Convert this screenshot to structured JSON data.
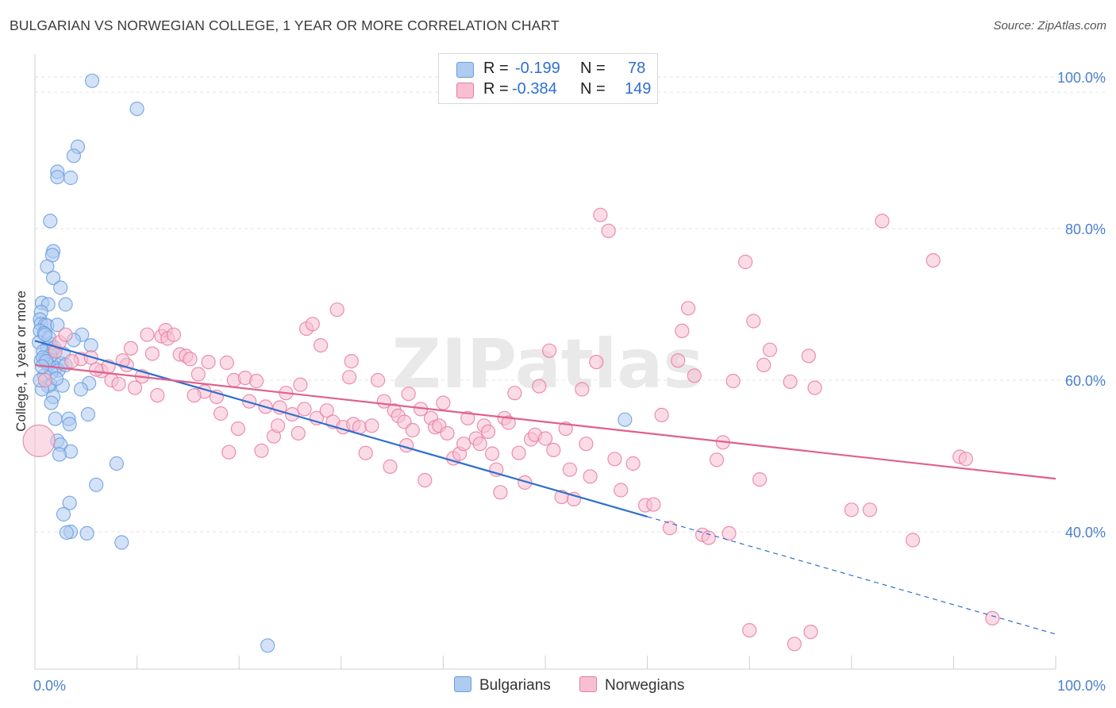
{
  "title": "BULGARIAN VS NORWEGIAN COLLEGE, 1 YEAR OR MORE CORRELATION CHART",
  "source": "Source: ZipAtlas.com",
  "watermark": "ZIPatlas",
  "colors": {
    "bulgarians": "#6a9ee0",
    "bulgarians_fill": "#aecbf0",
    "norwegians": "#e87ca0",
    "norwegians_fill": "#f7bfd1",
    "accent_text": "#2f6fd0",
    "grid": "#e2e2e2"
  },
  "legend": {
    "row1": {
      "r_label": "R =",
      "r_value": "-0.199",
      "n_label": "N =",
      "n_value": "78"
    },
    "row2": {
      "r_label": "R =",
      "r_value": "-0.384",
      "n_label": "N =",
      "n_value": "149"
    }
  },
  "bottom_legend": {
    "bulgarians": "Bulgarians",
    "norwegians": "Norwegians"
  },
  "chart_data": {
    "type": "scatter",
    "title": "BULGARIAN VS NORWEGIAN COLLEGE, 1 YEAR OR MORE CORRELATION CHART",
    "xlabel": "",
    "ylabel": "College, 1 year or more",
    "xlim": [
      0,
      100
    ],
    "ylim": [
      20,
      102
    ],
    "y_ticks": [
      40,
      60,
      80,
      100
    ],
    "y_tick_labels": [
      "40.0%",
      "60.0%",
      "80.0%",
      "100.0%"
    ],
    "x_tick_labels": [
      "0.0%",
      "100.0%"
    ],
    "grid": true,
    "legend_position": "top-center",
    "series": [
      {
        "name": "Bulgarians",
        "r": -0.199,
        "n": 78,
        "trend": {
          "x0": 0,
          "y0": 65.2,
          "x1": 60,
          "y1": 42.0,
          "dash_to_x": 100,
          "dash_to_y": 26.5
        },
        "points": [
          [
            5.6,
            99.5
          ],
          [
            10,
            95.8
          ],
          [
            4.2,
            90.8
          ],
          [
            3.8,
            89.6
          ],
          [
            2.2,
            87.5
          ],
          [
            2.2,
            86.8
          ],
          [
            3.5,
            86.7
          ],
          [
            1.5,
            81
          ],
          [
            1.8,
            77
          ],
          [
            1.7,
            76.5
          ],
          [
            1.2,
            75
          ],
          [
            1.8,
            73.5
          ],
          [
            2.5,
            72.2
          ],
          [
            0.7,
            70.2
          ],
          [
            1.3,
            70
          ],
          [
            3,
            70
          ],
          [
            0.6,
            69
          ],
          [
            0.5,
            68
          ],
          [
            0.6,
            67.4
          ],
          [
            1.0,
            67.3
          ],
          [
            1.2,
            67.2
          ],
          [
            2.2,
            67.3
          ],
          [
            0.5,
            66.5
          ],
          [
            0.9,
            66.2
          ],
          [
            4.6,
            66.0
          ],
          [
            3.8,
            65.3
          ],
          [
            0.4,
            65.0
          ],
          [
            1.5,
            64.8
          ],
          [
            5.5,
            64.6
          ],
          [
            1.2,
            64.2
          ],
          [
            1.8,
            64.0
          ],
          [
            0.8,
            63.8
          ],
          [
            1.5,
            63.2
          ],
          [
            1.0,
            62.8
          ],
          [
            0.6,
            62.6
          ],
          [
            1.6,
            62.3
          ],
          [
            2.6,
            62.2
          ],
          [
            1.3,
            62.0
          ],
          [
            2.0,
            61.6
          ],
          [
            2.3,
            61.3
          ],
          [
            1.6,
            61.0
          ],
          [
            0.9,
            60.6
          ],
          [
            5.3,
            59.6
          ],
          [
            1.5,
            59.4
          ],
          [
            2.7,
            59.3
          ],
          [
            1.3,
            59.2
          ],
          [
            0.7,
            58.8
          ],
          [
            4.5,
            58.8
          ],
          [
            1.8,
            57.8
          ],
          [
            1.6,
            57.0
          ],
          [
            5.2,
            55.5
          ],
          [
            2.0,
            54.9
          ],
          [
            3.3,
            54.9
          ],
          [
            3.4,
            54.2
          ],
          [
            2.2,
            52.0
          ],
          [
            2.5,
            51.5
          ],
          [
            3.5,
            50.6
          ],
          [
            2.4,
            50.2
          ],
          [
            8.0,
            49.0
          ],
          [
            6.0,
            46.2
          ],
          [
            3.4,
            43.8
          ],
          [
            2.8,
            42.3
          ],
          [
            3.5,
            40.0
          ],
          [
            3.1,
            39.9
          ],
          [
            5.1,
            39.8
          ],
          [
            8.5,
            38.6
          ],
          [
            22.8,
            25.0
          ],
          [
            57.8,
            54.8
          ],
          [
            0.8,
            63.0
          ],
          [
            1.1,
            62.5
          ],
          [
            2.8,
            63.5
          ],
          [
            1.4,
            65.6
          ],
          [
            0.7,
            61.8
          ],
          [
            2.1,
            60.2
          ],
          [
            0.5,
            60.0
          ],
          [
            1.9,
            64.3
          ],
          [
            3.0,
            62.0
          ],
          [
            1.0,
            66.0
          ]
        ]
      },
      {
        "name": "Norwegians",
        "r": -0.384,
        "n": 149,
        "trend": {
          "x0": 0,
          "y0": 62.0,
          "x1": 100,
          "y1": 47.0
        },
        "points": [
          [
            0.4,
            52.0
          ],
          [
            1.0,
            60.0
          ],
          [
            2.0,
            63.8
          ],
          [
            2.4,
            65.0
          ],
          [
            3.0,
            66.0
          ],
          [
            4.5,
            62.8
          ],
          [
            5.5,
            63.0
          ],
          [
            6.5,
            61.2
          ],
          [
            7.2,
            61.8
          ],
          [
            7.5,
            60.0
          ],
          [
            8.2,
            59.5
          ],
          [
            9.0,
            62.0
          ],
          [
            9.4,
            64.2
          ],
          [
            9.8,
            59.0
          ],
          [
            10.5,
            60.5
          ],
          [
            11.0,
            66.0
          ],
          [
            11.5,
            63.5
          ],
          [
            12.4,
            65.8
          ],
          [
            12.8,
            66.6
          ],
          [
            13.0,
            65.5
          ],
          [
            13.6,
            66.0
          ],
          [
            14.2,
            63.4
          ],
          [
            14.8,
            63.2
          ],
          [
            15.2,
            62.8
          ],
          [
            16.0,
            60.8
          ],
          [
            17.0,
            62.4
          ],
          [
            16.6,
            58.5
          ],
          [
            17.8,
            57.8
          ],
          [
            18.2,
            55.6
          ],
          [
            19.0,
            50.5
          ],
          [
            19.5,
            60.0
          ],
          [
            19.9,
            53.6
          ],
          [
            20.6,
            60.3
          ],
          [
            21.0,
            57.2
          ],
          [
            21.7,
            59.9
          ],
          [
            22.2,
            50.7
          ],
          [
            22.6,
            56.5
          ],
          [
            23.4,
            52.6
          ],
          [
            23.8,
            54.0
          ],
          [
            24.0,
            56.4
          ],
          [
            24.6,
            58.3
          ],
          [
            25.2,
            55.5
          ],
          [
            25.8,
            53.0
          ],
          [
            26.4,
            56.2
          ],
          [
            26.6,
            66.8
          ],
          [
            27.2,
            67.4
          ],
          [
            27.6,
            55.0
          ],
          [
            28.0,
            64.6
          ],
          [
            28.6,
            56.0
          ],
          [
            29.2,
            54.5
          ],
          [
            29.6,
            69.3
          ],
          [
            30.2,
            53.8
          ],
          [
            30.8,
            60.4
          ],
          [
            31.2,
            54.2
          ],
          [
            31.8,
            53.8
          ],
          [
            32.4,
            50.4
          ],
          [
            33.0,
            54.0
          ],
          [
            33.6,
            60.0
          ],
          [
            34.2,
            57.2
          ],
          [
            34.8,
            48.6
          ],
          [
            35.2,
            56.0
          ],
          [
            35.6,
            55.3
          ],
          [
            36.2,
            54.5
          ],
          [
            36.6,
            58.2
          ],
          [
            37.0,
            53.4
          ],
          [
            37.8,
            56.2
          ],
          [
            38.2,
            46.8
          ],
          [
            38.8,
            55.0
          ],
          [
            39.2,
            53.8
          ],
          [
            39.6,
            54.0
          ],
          [
            40.0,
            57.0
          ],
          [
            40.4,
            53.0
          ],
          [
            41.0,
            49.7
          ],
          [
            41.6,
            50.3
          ],
          [
            42.0,
            51.6
          ],
          [
            42.4,
            55.0
          ],
          [
            43.2,
            52.3
          ],
          [
            43.6,
            51.6
          ],
          [
            44.0,
            54.0
          ],
          [
            44.4,
            53.2
          ],
          [
            44.8,
            50.3
          ],
          [
            45.2,
            48.2
          ],
          [
            45.6,
            45.2
          ],
          [
            46.0,
            55.0
          ],
          [
            46.4,
            54.4
          ],
          [
            47.0,
            58.3
          ],
          [
            47.4,
            50.4
          ],
          [
            48.0,
            46.5
          ],
          [
            48.6,
            52.2
          ],
          [
            49.0,
            52.8
          ],
          [
            49.4,
            59.2
          ],
          [
            50.0,
            52.3
          ],
          [
            50.4,
            63.9
          ],
          [
            50.8,
            50.8
          ],
          [
            51.6,
            44.6
          ],
          [
            52.0,
            53.6
          ],
          [
            52.4,
            48.2
          ],
          [
            52.8,
            44.3
          ],
          [
            53.6,
            58.8
          ],
          [
            54.0,
            51.6
          ],
          [
            54.4,
            47.3
          ],
          [
            55.0,
            62.4
          ],
          [
            55.4,
            81.8
          ],
          [
            56.2,
            79.7
          ],
          [
            56.8,
            49.6
          ],
          [
            57.4,
            45.5
          ],
          [
            58.6,
            49.0
          ],
          [
            59.8,
            43.5
          ],
          [
            60.6,
            43.6
          ],
          [
            61.4,
            55.4
          ],
          [
            62.2,
            40.5
          ],
          [
            63.0,
            62.6
          ],
          [
            63.4,
            66.5
          ],
          [
            64.0,
            69.5
          ],
          [
            64.6,
            60.6
          ],
          [
            65.4,
            39.6
          ],
          [
            66.0,
            39.2
          ],
          [
            66.8,
            49.5
          ],
          [
            67.4,
            51.8
          ],
          [
            68.0,
            39.8
          ],
          [
            68.4,
            59.9
          ],
          [
            69.6,
            75.6
          ],
          [
            70.4,
            67.8
          ],
          [
            71.0,
            46.9
          ],
          [
            71.4,
            62.0
          ],
          [
            72.0,
            64.0
          ],
          [
            74.0,
            59.8
          ],
          [
            75.8,
            63.2
          ],
          [
            76.4,
            59.0
          ],
          [
            80.0,
            42.9
          ],
          [
            81.8,
            42.9
          ],
          [
            83.0,
            81.0
          ],
          [
            86.0,
            38.9
          ],
          [
            88.0,
            75.8
          ],
          [
            90.6,
            49.9
          ],
          [
            91.2,
            49.6
          ],
          [
            93.8,
            28.6
          ],
          [
            74.4,
            25.2
          ],
          [
            76.0,
            26.8
          ],
          [
            70.0,
            27.0
          ],
          [
            31.0,
            62.5
          ],
          [
            3.6,
            62.5
          ],
          [
            6.0,
            61.4
          ],
          [
            8.6,
            62.6
          ],
          [
            12.0,
            58.0
          ],
          [
            36.4,
            51.4
          ],
          [
            26.0,
            59.4
          ],
          [
            15.6,
            58.0
          ],
          [
            18.8,
            62.3
          ]
        ]
      }
    ]
  }
}
